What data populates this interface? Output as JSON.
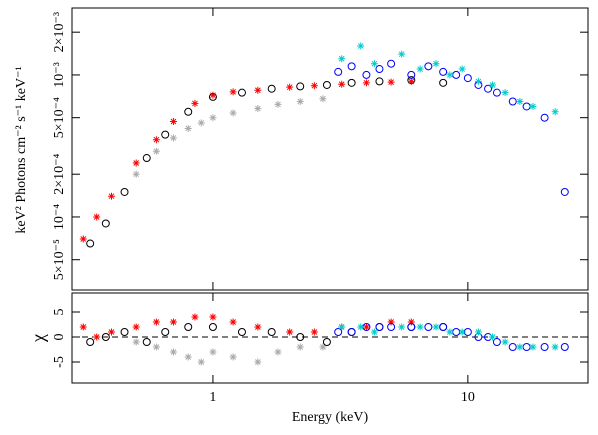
{
  "chart_data": [
    {
      "type": "scatter",
      "xlog": true,
      "ylog": true,
      "ylabel": "keV² Photons cm⁻² s⁻¹ keV⁻¹",
      "xlim": [
        0.28,
        29.6
      ],
      "ylim": [
        3.06e-05,
        0.00296
      ],
      "yticks": [
        {
          "value": 5e-05,
          "label": "5×10⁻⁵"
        },
        {
          "value": 0.0001,
          "label": "10⁻⁴"
        },
        {
          "value": 0.0002,
          "label": "2×10⁻⁴"
        },
        {
          "value": 0.0005,
          "label": "5×10⁻⁴"
        },
        {
          "value": 0.001,
          "label": "10⁻³"
        },
        {
          "value": 0.002,
          "label": "2×10⁻³"
        }
      ],
      "series": [
        {
          "color": "#aaaaaa",
          "marker": "cross",
          "x": [
            0.5,
            0.6,
            0.7,
            0.8,
            0.9,
            1.0,
            1.2,
            1.5,
            1.8,
            2.2,
            2.7
          ],
          "values": [
            0.0002,
            0.00029,
            0.00036,
            0.00042,
            0.00046,
            0.0005,
            0.00054,
            0.00058,
            0.00062,
            0.00065,
            0.00068
          ]
        },
        {
          "color": "#000000",
          "marker": "circle",
          "x": [
            0.33,
            0.38,
            0.45,
            0.55,
            0.65,
            0.8,
            1.0,
            1.3,
            1.7,
            2.2,
            2.8,
            3.5,
            4.5,
            6,
            8
          ],
          "values": [
            6.5e-05,
            9e-05,
            0.00015,
            0.00026,
            0.00038,
            0.00055,
            0.0007,
            0.00075,
            0.0008,
            0.00083,
            0.00085,
            0.00088,
            0.0009,
            0.00092,
            0.00088
          ]
        },
        {
          "color": "#ff0000",
          "marker": "cross",
          "x": [
            0.31,
            0.35,
            0.4,
            0.5,
            0.6,
            0.7,
            0.85,
            1.0,
            1.2,
            1.5,
            2.0,
            2.5,
            3.2,
            4,
            5,
            6
          ],
          "values": [
            7e-05,
            0.0001,
            0.00014,
            0.00024,
            0.00035,
            0.00047,
            0.00063,
            0.00072,
            0.00076,
            0.00078,
            0.00082,
            0.00084,
            0.00086,
            0.00088,
            0.00089,
            0.0009
          ]
        },
        {
          "color": "#0000ff",
          "marker": "circle",
          "x": [
            3.1,
            3.5,
            4,
            4.5,
            5,
            6,
            7,
            8,
            9,
            10,
            11,
            12,
            13,
            15,
            17,
            20,
            24
          ],
          "values": [
            0.00105,
            0.00115,
            0.001,
            0.0011,
            0.0012,
            0.001,
            0.00115,
            0.00105,
            0.001,
            0.00095,
            0.00085,
            0.0008,
            0.00075,
            0.00065,
            0.0006,
            0.0005,
            0.00015
          ]
        },
        {
          "color": "#00cccc",
          "marker": "cross",
          "x": [
            3.2,
            3.8,
            4.3,
            5.5,
            6.5,
            7.5,
            8.5,
            9.5,
            11,
            12.5,
            14,
            16,
            18,
            22
          ],
          "values": [
            0.0013,
            0.0016,
            0.0012,
            0.0014,
            0.0011,
            0.0012,
            0.001,
            0.0011,
            0.0009,
            0.00085,
            0.00075,
            0.00065,
            0.0006,
            0.00055
          ]
        }
      ]
    },
    {
      "type": "scatter",
      "xlog": true,
      "ylabel": "χ",
      "xlabel": "Energy (keV)",
      "xlim": [
        0.28,
        29.6
      ],
      "ylim": [
        -9.2,
        8.8
      ],
      "xticks": [
        1,
        10
      ],
      "yticks": [
        -5,
        0,
        5
      ],
      "hline": 0,
      "series": [
        {
          "color": "#aaaaaa",
          "marker": "cross",
          "x": [
            0.5,
            0.6,
            0.7,
            0.8,
            0.9,
            1.0,
            1.2,
            1.5,
            1.8,
            2.2,
            2.7
          ],
          "values": [
            -1,
            -2,
            -3,
            -4,
            -5,
            -3,
            -4,
            -5,
            -3,
            -2,
            -2
          ]
        },
        {
          "color": "#000000",
          "marker": "circle",
          "x": [
            0.33,
            0.38,
            0.45,
            0.55,
            0.65,
            0.8,
            1.0,
            1.3,
            1.7,
            2.2,
            2.8,
            3.5,
            4.5,
            6,
            8
          ],
          "values": [
            -1,
            0,
            1,
            -1,
            1,
            2,
            2,
            1,
            1,
            0,
            -1,
            1,
            2,
            2,
            2
          ]
        },
        {
          "color": "#ff0000",
          "marker": "cross",
          "x": [
            0.31,
            0.35,
            0.4,
            0.5,
            0.6,
            0.7,
            0.85,
            1.0,
            1.2,
            1.5,
            2.0,
            2.5,
            3.2,
            4,
            5,
            6
          ],
          "values": [
            2,
            0,
            1,
            2,
            3,
            3,
            4,
            4,
            3,
            2,
            1,
            1,
            2,
            2,
            3,
            3
          ]
        },
        {
          "color": "#0000ff",
          "marker": "circle",
          "x": [
            3.1,
            3.5,
            4,
            4.5,
            5,
            6,
            7,
            8,
            9,
            10,
            11,
            12,
            13,
            15,
            17,
            20,
            24
          ],
          "values": [
            1,
            1,
            2,
            2,
            2,
            2,
            2,
            2,
            1,
            1,
            0,
            0,
            -1,
            -2,
            -2,
            -2,
            -2
          ]
        },
        {
          "color": "#00cccc",
          "marker": "cross",
          "x": [
            3.2,
            3.8,
            4.3,
            5.5,
            6.5,
            7.5,
            8.5,
            9.5,
            11,
            12.5,
            14,
            16,
            18,
            22
          ],
          "values": [
            2,
            2,
            1,
            2,
            2,
            2,
            1,
            1,
            1,
            0,
            -1,
            -2,
            -2,
            -2
          ]
        }
      ]
    }
  ]
}
